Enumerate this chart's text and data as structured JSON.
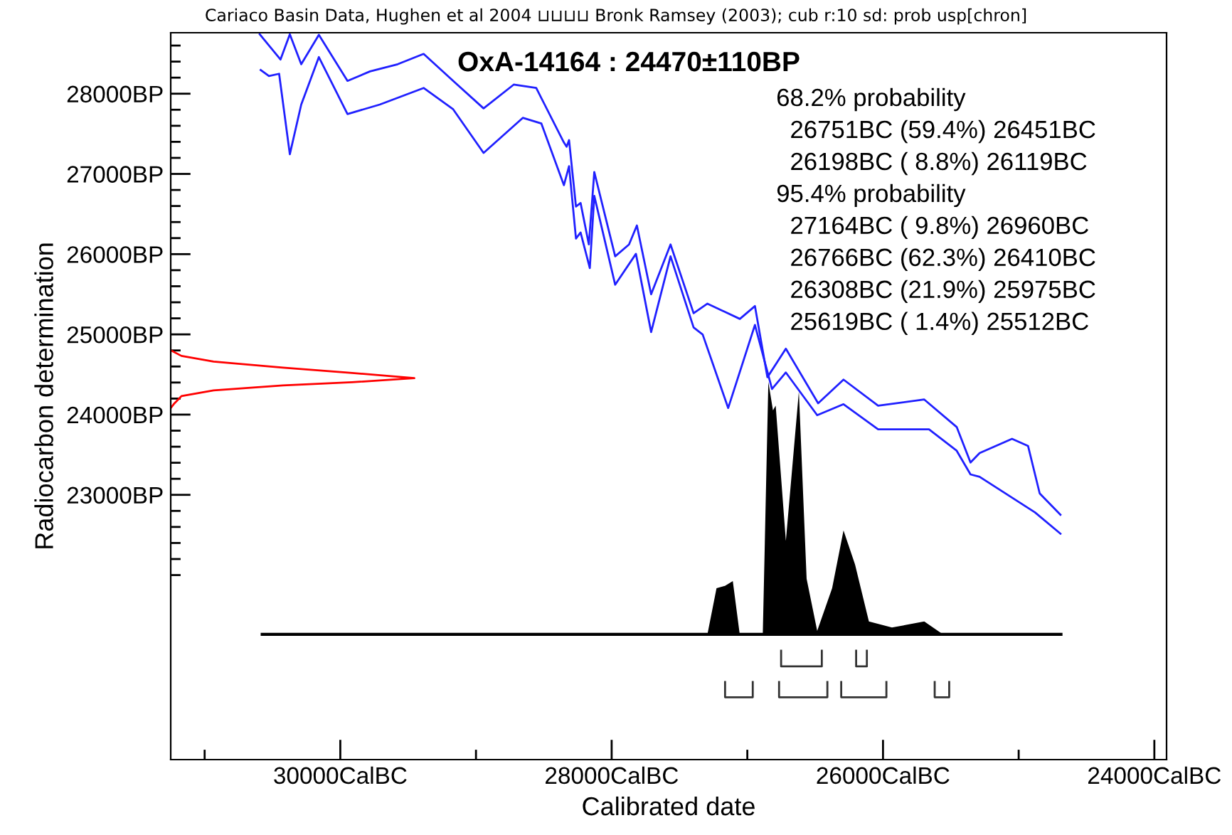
{
  "chart_data": {
    "type": "line",
    "title": "OxA-14164 : 24470±110BP",
    "subtitle": "Cariaco Basin Data, Hughen et al 2004 ⊔⊔⊔⊔ Bronk Ramsey (2003); cub r:10 sd: prob usp[chron]",
    "xlabel": "Calibrated date",
    "ylabel": "Radiocarbon determination",
    "annotations": [
      "68.2% probability",
      "  26751BC (59.4%) 26451BC",
      "  26198BC ( 8.8%) 26119BC",
      "95.4% probability",
      "  27164BC ( 9.8%) 26960BC",
      "  26766BC (62.3%) 26410BC",
      "  26308BC (21.9%) 25975BC",
      "  25619BC ( 1.4%) 25512BC"
    ],
    "xlim": [
      31250,
      23910
    ],
    "ylim": [
      19700,
      28760
    ],
    "xticks": [
      {
        "value": 31000,
        "label": null
      },
      {
        "value": 30000,
        "label": "30000CalBC"
      },
      {
        "value": 29000,
        "label": null
      },
      {
        "value": 28000,
        "label": "28000CalBC"
      },
      {
        "value": 27000,
        "label": null
      },
      {
        "value": 26000,
        "label": "26000CalBC"
      },
      {
        "value": 25000,
        "label": null
      },
      {
        "value": 24000,
        "label": "24000CalBC"
      }
    ],
    "yticks": [
      {
        "value": 22000,
        "label": null
      },
      {
        "value": 22200,
        "label": null
      },
      {
        "value": 22400,
        "label": null
      },
      {
        "value": 22600,
        "label": null
      },
      {
        "value": 22800,
        "label": null
      },
      {
        "value": 23000,
        "label": "23000BP"
      },
      {
        "value": 23200,
        "label": null
      },
      {
        "value": 23400,
        "label": null
      },
      {
        "value": 23600,
        "label": null
      },
      {
        "value": 23800,
        "label": null
      },
      {
        "value": 24000,
        "label": "24000BP"
      },
      {
        "value": 24200,
        "label": null
      },
      {
        "value": 24400,
        "label": null
      },
      {
        "value": 24600,
        "label": null
      },
      {
        "value": 24800,
        "label": null
      },
      {
        "value": 25000,
        "label": "25000BP"
      },
      {
        "value": 25200,
        "label": null
      },
      {
        "value": 25400,
        "label": null
      },
      {
        "value": 25600,
        "label": null
      },
      {
        "value": 25800,
        "label": null
      },
      {
        "value": 26000,
        "label": "26000BP"
      },
      {
        "value": 26200,
        "label": null
      },
      {
        "value": 26400,
        "label": null
      },
      {
        "value": 26600,
        "label": null
      },
      {
        "value": 26800,
        "label": null
      },
      {
        "value": 27000,
        "label": "27000BP"
      },
      {
        "value": 27200,
        "label": null
      },
      {
        "value": 27400,
        "label": null
      },
      {
        "value": 27600,
        "label": null
      },
      {
        "value": 27800,
        "label": null
      },
      {
        "value": 28000,
        "label": "28000BP"
      },
      {
        "value": 28200,
        "label": null
      },
      {
        "value": 28400,
        "label": null
      },
      {
        "value": 28600,
        "label": null
      }
    ],
    "grid": false,
    "legend": false,
    "marker": "none",
    "line_style": "solid",
    "series": [
      {
        "color": "#2020ff",
        "x": [
          30594,
          30441,
          30372,
          30288,
          30158,
          29947,
          29781,
          29577,
          29386,
          29168,
          28944,
          28722,
          28556,
          28352,
          28332,
          28314,
          28263,
          28229,
          28168,
          28128,
          27974,
          27872,
          27814,
          27709,
          27566,
          27396,
          27294,
          27055,
          26944,
          26852,
          26716,
          26478,
          26291,
          26036,
          25696,
          25457,
          25355,
          25288,
          25049,
          24931,
          24845,
          24692
        ],
        "values": [
          28740,
          28426,
          28740,
          28367,
          28734,
          28160,
          28278,
          28367,
          28496,
          28160,
          27817,
          28113,
          28071,
          27392,
          27339,
          27422,
          26594,
          26638,
          26121,
          27023,
          25973,
          26121,
          26358,
          25500,
          26121,
          25264,
          25383,
          25193,
          25353,
          24466,
          24821,
          24142,
          24436,
          24112,
          24188,
          23846,
          23403,
          23521,
          23699,
          23610,
          23018,
          22752
        ]
      },
      {
        "color": "#2020ff",
        "x": [
          30587,
          30526,
          30451,
          30372,
          30288,
          30158,
          29947,
          29709,
          29386,
          29168,
          28944,
          28655,
          28518,
          28352,
          28314,
          28263,
          28229,
          28161,
          28128,
          27974,
          27821,
          27709,
          27566,
          27396,
          27329,
          27141,
          26944,
          26818,
          26716,
          26485,
          26291,
          26036,
          25661,
          25457,
          25355,
          25288,
          24880,
          24692
        ],
        "values": [
          28296,
          28220,
          28248,
          27245,
          27865,
          28456,
          27746,
          27865,
          28071,
          27805,
          27262,
          27699,
          27628,
          26860,
          27096,
          26195,
          26270,
          25826,
          26727,
          25619,
          26004,
          25029,
          25973,
          25087,
          24998,
          24082,
          25117,
          24319,
          24525,
          23993,
          24130,
          23816,
          23816,
          23550,
          23255,
          23225,
          22782,
          22516
        ]
      },
      {
        "color": "#ff0000",
        "x": [
          31250,
          31171,
          30934,
          30423,
          29913,
          29454,
          29913,
          30423,
          30934,
          31171,
          31222,
          31250
        ],
        "values": [
          24803,
          24732,
          24661,
          24585,
          24520,
          24454,
          24404,
          24365,
          24302,
          24231,
          24142,
          24082
        ]
      },
      {
        "type": "area",
        "color": "#000000",
        "x": [
          30576,
          27294,
          27227,
          27165,
          27107,
          27056,
          26886,
          26845,
          26811,
          26791,
          26716,
          26620,
          26563,
          26485,
          26375,
          26291,
          26206,
          26104,
          25934,
          25696,
          25559,
          24688
        ],
        "values": [
          21262,
          21262,
          21837,
          21866,
          21926,
          21262,
          21262,
          24408,
          24053,
          24112,
          22427,
          24289,
          21954,
          21305,
          21837,
          22557,
          22131,
          21422,
          21346,
          21422,
          21262,
          21262
        ]
      },
      {
        "color": "#333333",
        "x": [
          26751,
          26751,
          26451,
          26451,
          null,
          26198,
          26198,
          26119,
          26119
        ],
        "values": [
          21057,
          20862,
          20862,
          21057,
          null,
          21057,
          20862,
          20862,
          21057
        ]
      },
      {
        "color": "#333333",
        "x": [
          27164,
          27164,
          26960,
          26960,
          null,
          26766,
          26766,
          26410,
          26410,
          null,
          26308,
          26308,
          25975,
          25975,
          null,
          25619,
          25619,
          25512,
          25512
        ],
        "values": [
          20667,
          20477,
          20477,
          20667,
          null,
          20667,
          20477,
          20477,
          20667,
          null,
          20667,
          20477,
          20477,
          20667,
          null,
          20667,
          20477,
          20477,
          20667
        ]
      }
    ]
  }
}
